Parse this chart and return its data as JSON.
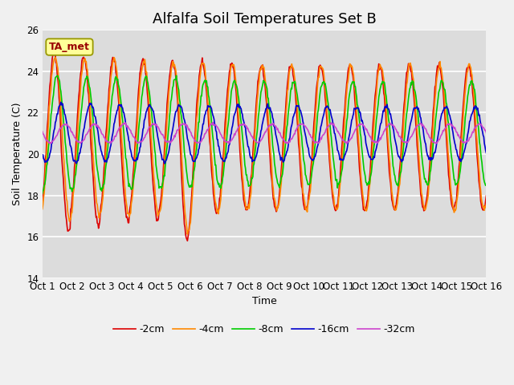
{
  "title": "Alfalfa Soil Temperatures Set B",
  "xlabel": "Time",
  "ylabel": "Soil Temperature (C)",
  "ylim": [
    14,
    26
  ],
  "xlim": [
    0,
    15
  ],
  "xtick_labels": [
    "Oct 1",
    "Oct 2",
    "Oct 3",
    "Oct 4",
    "Oct 5",
    "Oct 6",
    "Oct 7",
    "Oct 8",
    "Oct 9",
    "Oct 10",
    "Oct 11",
    "Oct 12",
    "Oct 13",
    "Oct 14",
    "Oct 15",
    "Oct 16"
  ],
  "ytick_labels": [
    "14",
    "16",
    "18",
    "20",
    "22",
    "24",
    "26"
  ],
  "series_colors": [
    "#dd0000",
    "#ff8800",
    "#00cc00",
    "#0000cc",
    "#cc44cc"
  ],
  "series_labels": [
    "-2cm",
    "-4cm",
    "-8cm",
    "-16cm",
    "-32cm"
  ],
  "bg_color": "#dcdcdc",
  "annotation_text": "TA_met",
  "annotation_color": "#990000",
  "annotation_bg": "#ffff99",
  "annotation_edge": "#999900",
  "title_fontsize": 13,
  "label_fontsize": 9,
  "tick_fontsize": 8.5,
  "n_points": 720,
  "days": 15
}
